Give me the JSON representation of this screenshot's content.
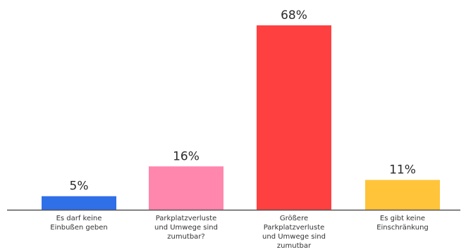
{
  "chart_data": {
    "type": "bar",
    "categories": [
      [
        "Es darf keine",
        "Einbußen geben"
      ],
      [
        "Parkplatzverluste",
        "und Umwege sind",
        "zumutbar?"
      ],
      [
        "Größere",
        "Parkplatzverluste",
        "und Umwege sind",
        "zumutbar"
      ],
      [
        "Es gibt keine",
        "Einschränkung"
      ]
    ],
    "values": [
      5,
      16,
      68,
      11
    ],
    "value_labels": [
      "5%",
      "16%",
      "68%",
      "11%"
    ],
    "colors": [
      "#2f6fe8",
      "#ff86ad",
      "#ff4040",
      "#ffc43a"
    ],
    "axis_color": "#555555",
    "ylim": [
      0,
      68
    ],
    "grid": false,
    "legend": "none"
  }
}
